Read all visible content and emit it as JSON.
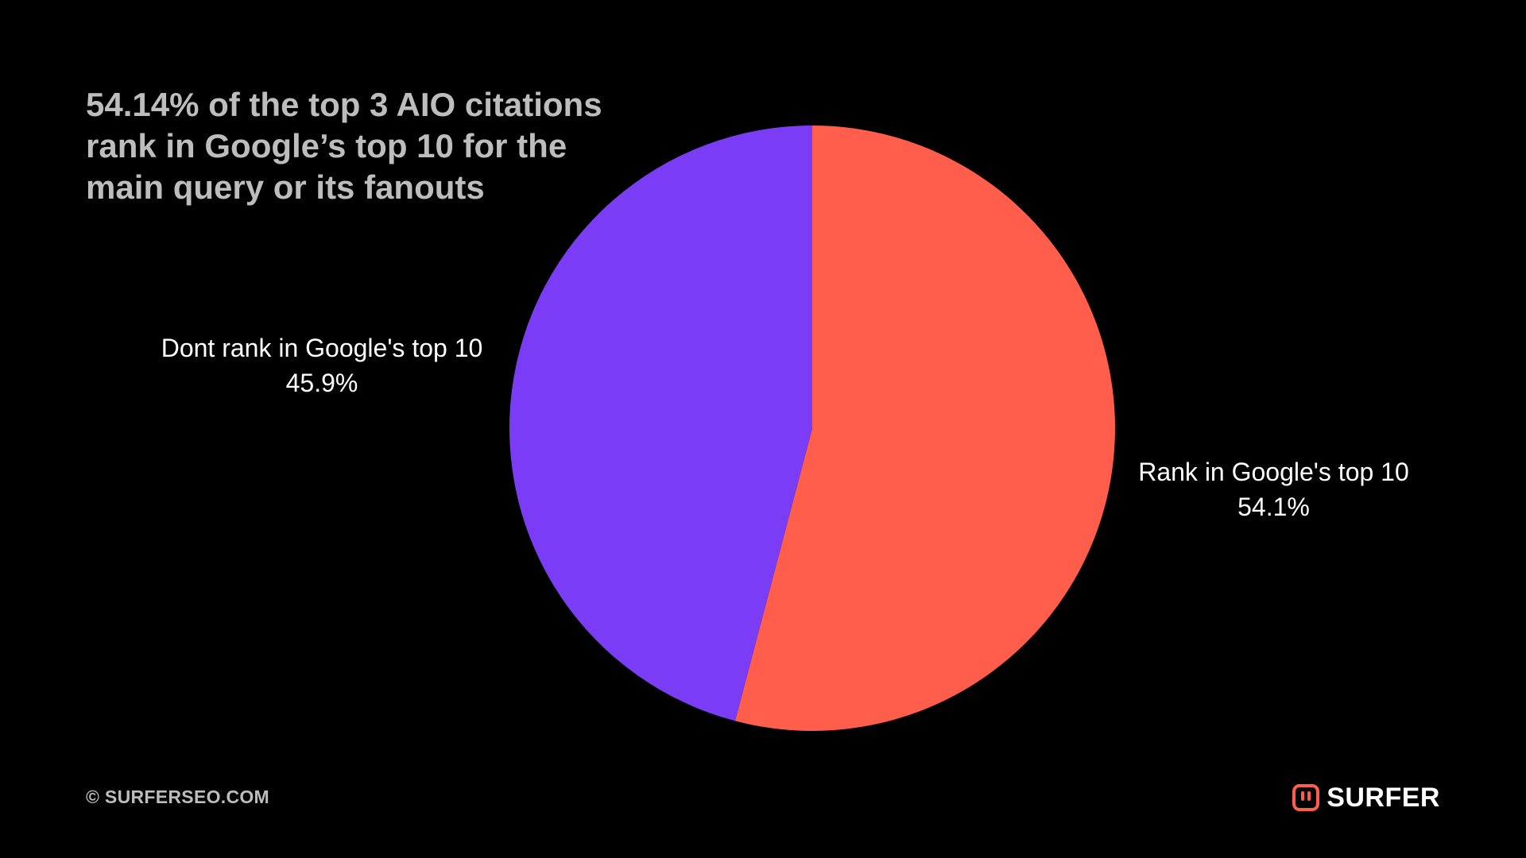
{
  "title_lines": [
    "54.14% of the top 3 AIO citations",
    "rank in Google’s top 10 for the",
    "main query or its fanouts"
  ],
  "footer": {
    "copyright": "© SURFERSEO.COM",
    "brand": "SURFER",
    "brand_icon": "surfer-logo-icon"
  },
  "colors": {
    "background": "#000000",
    "rank": "#ff5e4c",
    "dont_rank": "#7a3cf5",
    "title": "#bdbdbd",
    "label": "#ffffff",
    "brand_accent": "#ff5e4c"
  },
  "chart_data": {
    "type": "pie",
    "title": "54.14% of the top 3 AIO citations rank in Google’s top 10 for the main query or its fanouts",
    "start_angle_deg": 0,
    "direction": "clockwise",
    "slices": [
      {
        "label": "Rank in Google's top 10",
        "value": 54.1,
        "display": "54.1%",
        "color": "#ff5e4c"
      },
      {
        "label": "Dont rank in Google's top 10",
        "value": 45.9,
        "display": "45.9%",
        "color": "#7a3cf5"
      }
    ]
  }
}
